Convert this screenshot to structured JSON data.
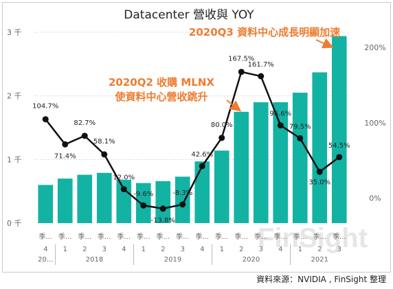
{
  "chart_data": {
    "type": "bar",
    "title": "Datacenter 營收與 YOY",
    "categories": [
      {
        "q": "4",
        "y": "20..."
      },
      {
        "q": "1",
        "y": "2018"
      },
      {
        "q": "2",
        "y": "2018"
      },
      {
        "q": "3",
        "y": "2018"
      },
      {
        "q": "4",
        "y": "2018"
      },
      {
        "q": "1",
        "y": "2019"
      },
      {
        "q": "2",
        "y": "2019"
      },
      {
        "q": "3",
        "y": "2019"
      },
      {
        "q": "4",
        "y": "2019"
      },
      {
        "q": "1",
        "y": "2020"
      },
      {
        "q": "2",
        "y": "2020"
      },
      {
        "q": "3",
        "y": "2020"
      },
      {
        "q": "4",
        "y": "2020"
      },
      {
        "q": "1",
        "y": "2021"
      },
      {
        "q": "2",
        "y": "2021"
      },
      {
        "q": "3",
        "y": "2021"
      }
    ],
    "quarter_prefix": "季...",
    "year_labels": [
      "20...",
      "2018",
      "2019",
      "2020",
      "2021"
    ],
    "series": [
      {
        "values": [
          0.6,
          0.7,
          0.76,
          0.79,
          0.68,
          0.63,
          0.66,
          0.73,
          0.97,
          1.14,
          1.75,
          1.9,
          1.9,
          2.05,
          2.37,
          2.94
        ]
      },
      {
        "values": [
          104.7,
          71.4,
          82.7,
          58.1,
          12.0,
          -9.6,
          -13.8,
          -8.3,
          42.6,
          80.0,
          167.5,
          161.7,
          96.6,
          79.5,
          35.0,
          54.5
        ]
      }
    ],
    "yoy_labels": [
      "104.7%",
      "71.4%",
      "82.7%",
      "58.1%",
      "12.0%",
      "-9.6%",
      "-13.8%",
      "-8.3%",
      "42.6%",
      "80.0%",
      "167.5%",
      "161.7%",
      "96.6%",
      "79.5%",
      "35.0%",
      "54.5%"
    ],
    "left_axis": {
      "ylim": [
        0,
        3
      ],
      "ticks": [
        "0 千",
        "1 千",
        "2 千",
        "3 千"
      ]
    },
    "right_axis": {
      "ylim": [
        -33,
        220
      ],
      "ticks": [
        "0%",
        "100%",
        "200%"
      ]
    },
    "annotations": [
      {
        "text": "2020Q3 資料中心成長明顯加速"
      },
      {
        "text": "2020Q2 收購 MLNX"
      },
      {
        "text": "使資料中心營收跳升"
      }
    ],
    "grid": true,
    "watermark": "FinSight"
  },
  "colors": {
    "bar": "#13b3a4",
    "line": "#111111",
    "annotation": "#ee7d31",
    "grid": "#d9d9d9",
    "axis_text": "#666666"
  },
  "source_text": "資料來源：NVIDIA , FinSight 整理"
}
